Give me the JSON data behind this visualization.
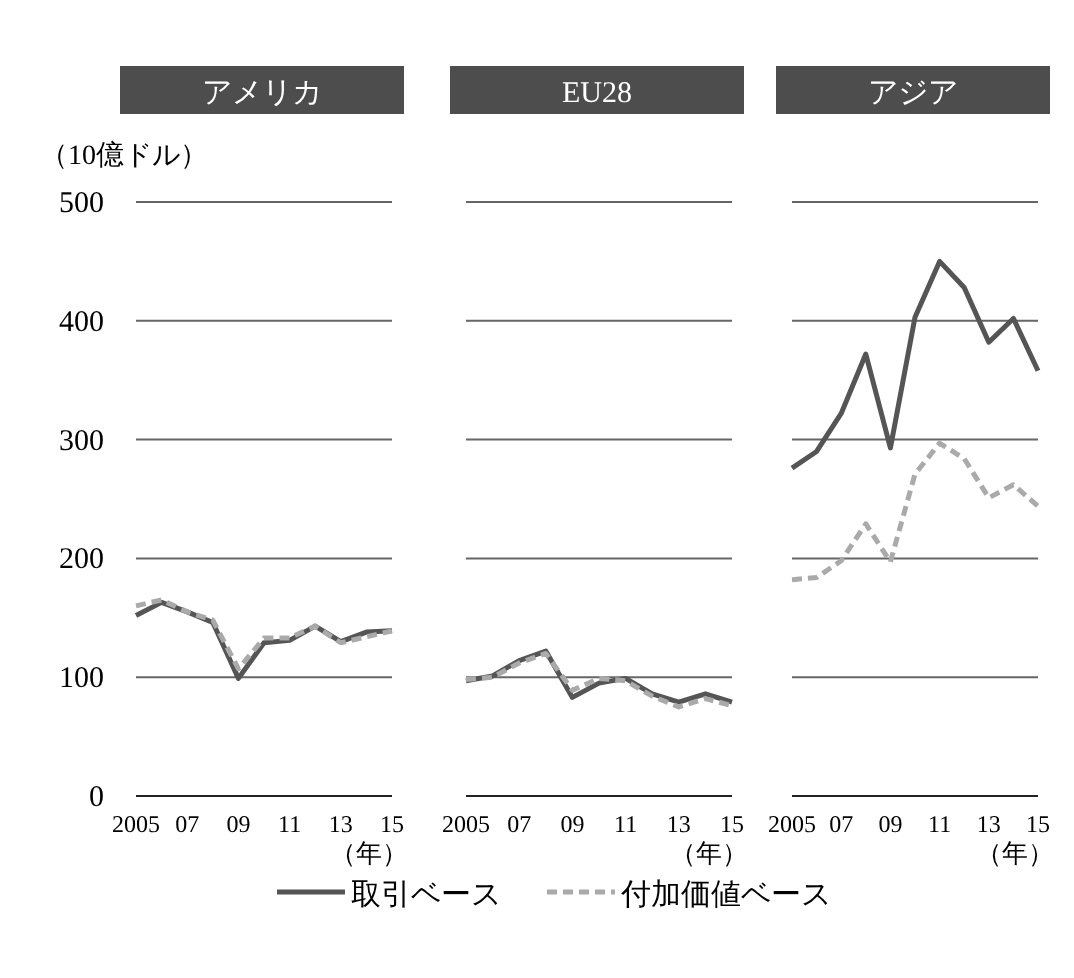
{
  "chart_data": [
    {
      "type": "line",
      "title": "アメリカ",
      "ylabel": "（10億ドル）",
      "xlabel": "（年）",
      "x": [
        2005,
        2006,
        2007,
        2008,
        2009,
        2010,
        2011,
        2012,
        2013,
        2014,
        2015
      ],
      "xlim": [
        2005,
        2015
      ],
      "xticks": [
        {
          "value": 2005,
          "label": "2005"
        },
        {
          "value": 2007,
          "label": "07"
        },
        {
          "value": 2009,
          "label": "09"
        },
        {
          "value": 2011,
          "label": "11"
        },
        {
          "value": 2013,
          "label": "13"
        },
        {
          "value": 2015,
          "label": "15"
        }
      ],
      "ylim": [
        0,
        500
      ],
      "yticks": [
        0,
        100,
        200,
        300,
        400,
        500
      ],
      "grid": "y",
      "legend": "bottom",
      "series": [
        {
          "name": "取引ベース",
          "color": "#555555",
          "line_style": "solid",
          "values": [
            152,
            163,
            155,
            146,
            99,
            129,
            131,
            143,
            130,
            138,
            139
          ]
        },
        {
          "name": "付加価値ベース",
          "color": "#aaaaaa",
          "line_style": "dashed",
          "values": [
            160,
            165,
            155,
            148,
            107,
            133,
            133,
            143,
            129,
            134,
            139
          ]
        }
      ]
    },
    {
      "type": "line",
      "title": "EU28",
      "xlabel": "（年）",
      "x": [
        2005,
        2006,
        2007,
        2008,
        2009,
        2010,
        2011,
        2012,
        2013,
        2014,
        2015
      ],
      "xlim": [
        2005,
        2015
      ],
      "xticks": [
        {
          "value": 2005,
          "label": "2005"
        },
        {
          "value": 2007,
          "label": "07"
        },
        {
          "value": 2009,
          "label": "09"
        },
        {
          "value": 2011,
          "label": "11"
        },
        {
          "value": 2013,
          "label": "13"
        },
        {
          "value": 2015,
          "label": "15"
        }
      ],
      "ylim": [
        0,
        500
      ],
      "yticks": [
        0,
        100,
        200,
        300,
        400,
        500
      ],
      "grid": "y",
      "tick_labels": "x",
      "series": [
        {
          "color": "#555555",
          "line_style": "solid",
          "values": [
            97,
            101,
            114,
            122,
            83,
            95,
            99,
            86,
            79,
            86,
            79
          ]
        },
        {
          "color": "#aaaaaa",
          "line_style": "dashed",
          "values": [
            98,
            100,
            112,
            120,
            89,
            99,
            97,
            84,
            75,
            82,
            76
          ]
        }
      ]
    },
    {
      "type": "line",
      "title": "アジア",
      "xlabel": "（年）",
      "x": [
        2005,
        2006,
        2007,
        2008,
        2009,
        2010,
        2011,
        2012,
        2013,
        2014,
        2015
      ],
      "xlim": [
        2005,
        2015
      ],
      "xticks": [
        {
          "value": 2005,
          "label": "2005"
        },
        {
          "value": 2007,
          "label": "07"
        },
        {
          "value": 2009,
          "label": "09"
        },
        {
          "value": 2011,
          "label": "11"
        },
        {
          "value": 2013,
          "label": "13"
        },
        {
          "value": 2015,
          "label": "15"
        }
      ],
      "ylim": [
        0,
        500
      ],
      "yticks": [
        0,
        100,
        200,
        300,
        400,
        500
      ],
      "grid": "y",
      "tick_labels": "x",
      "series": [
        {
          "color": "#555555",
          "line_style": "solid",
          "values": [
            276,
            290,
            322,
            372,
            293,
            403,
            450,
            428,
            382,
            402,
            358
          ]
        },
        {
          "color": "#aaaaaa",
          "line_style": "dashed",
          "values": [
            182,
            184,
            198,
            229,
            197,
            271,
            297,
            284,
            251,
            262,
            244
          ]
        }
      ]
    }
  ]
}
